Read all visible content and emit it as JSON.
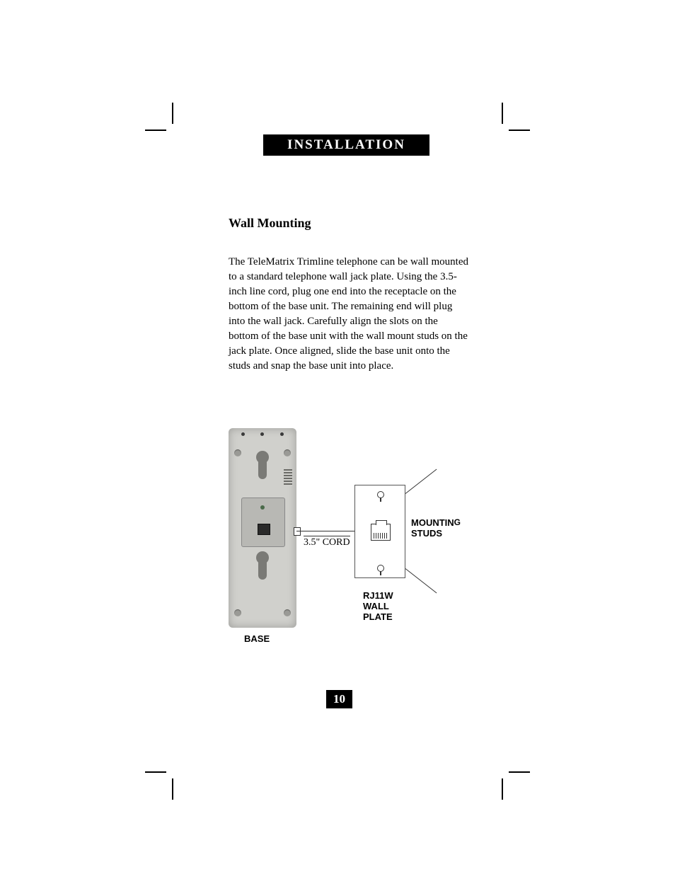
{
  "section_header": "INSTALLATION",
  "subheading": "Wall Mounting",
  "body": "The TeleMatrix Trimline telephone can be wall mounted to a standard telephone wall jack plate. Using the 3.5-inch line cord, plug one end into the receptacle on the bottom of the base unit. The remaining end will plug into the wall jack. Carefully align the slots on the bottom of the base unit with the wall mount studs on the jack plate. Once aligned, slide the base unit onto the studs and snap the base unit into place.",
  "figure": {
    "base_label": "BASE",
    "cord_label": "3.5\" CORD",
    "mounting_label_line1": "MOUNTIN",
    "mounting_label_g": "G",
    "mounting_label_line2": "STUDS",
    "wallplate_label_line1": "RJ11W",
    "wallplate_label_line2": "WALL",
    "wallplate_label_line3": "PLATE"
  },
  "page_number": "10",
  "colors": {
    "black": "#000000",
    "white": "#ffffff",
    "base_body": "#d0d0cc",
    "base_shadow": "#7a7a76"
  },
  "fonts": {
    "body": "Times New Roman",
    "labels": "Arial"
  }
}
